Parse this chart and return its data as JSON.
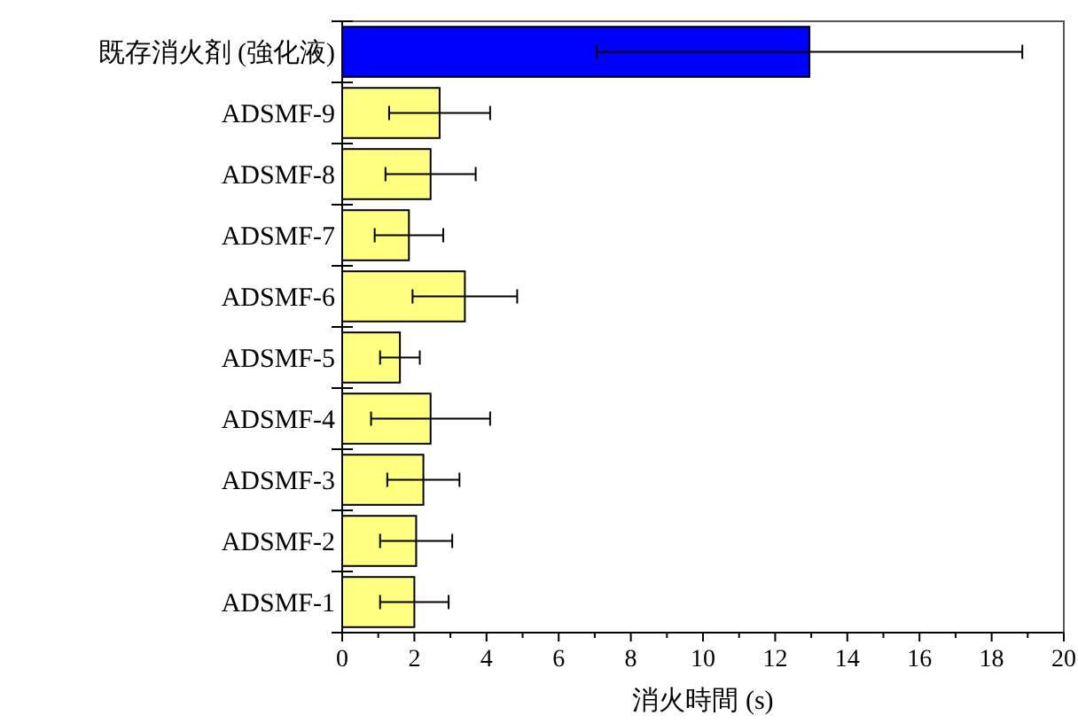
{
  "chart_data": {
    "type": "bar",
    "orientation": "horizontal",
    "xlabel": "消火時間 (s)",
    "categories": [
      "既存消火剤 (強化液)",
      "ADSMF-9",
      "ADSMF-8",
      "ADSMF-7",
      "ADSMF-6",
      "ADSMF-5",
      "ADSMF-4",
      "ADSMF-3",
      "ADSMF-2",
      "ADSMF-1"
    ],
    "values": [
      12.95,
      2.7,
      2.45,
      1.85,
      3.4,
      1.6,
      2.45,
      2.25,
      2.05,
      2.0
    ],
    "errors": [
      5.9,
      1.4,
      1.25,
      0.95,
      1.45,
      0.55,
      1.65,
      1.0,
      1.0,
      0.95
    ],
    "colors": [
      "#0000ff",
      "#ffff80",
      "#ffff80",
      "#ffff80",
      "#ffff80",
      "#ffff80",
      "#ffff80",
      "#ffff80",
      "#ffff80",
      "#ffff80"
    ],
    "xlim": [
      0,
      20
    ],
    "xticks": [
      0,
      {
        "value": 1,
        "label": null
      },
      2,
      {
        "value": 3,
        "label": null
      },
      4,
      {
        "value": 5,
        "label": null
      },
      6,
      {
        "value": 7,
        "label": null
      },
      8,
      {
        "value": 9,
        "label": null
      },
      10,
      {
        "value": 11,
        "label": null
      },
      12,
      {
        "value": 13,
        "label": null
      },
      14,
      {
        "value": 15,
        "label": null
      },
      16,
      {
        "value": 17,
        "label": null
      },
      18,
      {
        "value": 19,
        "label": null
      },
      20
    ],
    "grid": false
  }
}
